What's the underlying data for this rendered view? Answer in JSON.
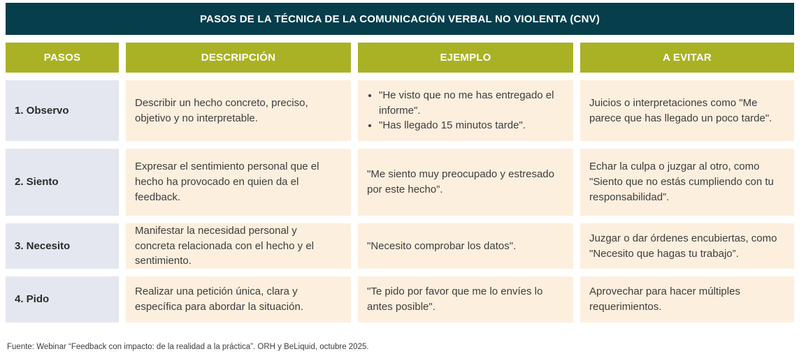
{
  "title": "PASOS DE LA TÉCNICA DE LA COMUNICACIÓN VERBAL NO VIOLENTA (CNV)",
  "columns": {
    "pasos": "PASOS",
    "descripcion": "DESCRIPCIÓN",
    "ejemplo": "EJEMPLO",
    "evitar": "A EVITAR"
  },
  "rows": [
    {
      "paso": "1. Observo",
      "descripcion": "Describir un hecho concreto, preciso, objetivo y no interpretable.",
      "ejemplo_bullets": [
        "\"He visto que no me has entregado el informe\".",
        "\"Has llegado 15 minutos tarde\"."
      ],
      "evitar": "Juicios o interpretaciones como \"Me parece que has llegado un poco tarde\"."
    },
    {
      "paso": "2. Siento",
      "descripcion": "Expresar el sentimiento personal que el hecho ha provocado en quien da el feedback.",
      "ejemplo": "\"Me siento muy preocupado y estresado por este hecho”.",
      "evitar": "Echar la culpa o juzgar al otro, como \"Siento que no estás cumpliendo con tu responsabilidad”."
    },
    {
      "paso": "3. Necesito",
      "descripcion": "Manifestar la necesidad personal y concreta relacionada con el hecho y el sentimiento.",
      "ejemplo": "\"Necesito comprobar los datos\".",
      "evitar": "Juzgar o dar órdenes encubiertas, como \"Necesito que hagas tu trabajo”."
    },
    {
      "paso": "4. Pido",
      "descripcion": "Realizar una petición única, clara y específica para abordar la situación.",
      "ejemplo": "\"Te pido por favor que me lo envíes lo antes posible\".",
      "evitar": "Aprovechar para hacer múltiples requerimientos."
    }
  ],
  "footer": "Fuente: Webinar “Feedback con impacto: de la realidad a la práctica”. ORH y BeLiquid, octubre 2025.",
  "colors": {
    "title_bg": "#073e4c",
    "header_bg": "#a9b224",
    "paso_cell_bg": "#e4e7ef",
    "body_cell_bg": "#fcefde",
    "text": "#3d3d3d"
  }
}
